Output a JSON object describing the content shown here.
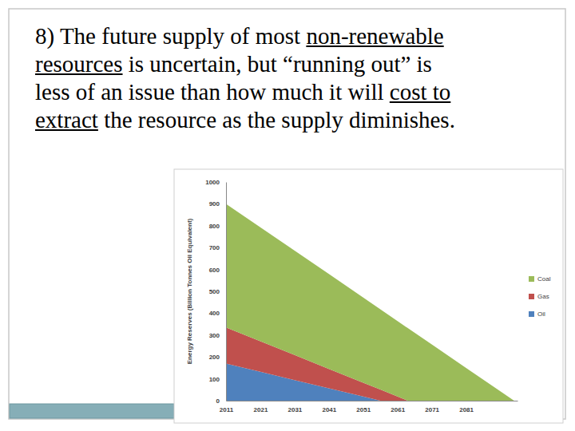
{
  "heading": {
    "lines": [
      [
        {
          "text": "8) The future supply of most ",
          "underline": false
        },
        {
          "text": "non-renewable",
          "underline": true
        }
      ],
      [
        {
          "text": "resources",
          "underline": true
        },
        {
          "text": " is uncertain, but “running out” is",
          "underline": false
        }
      ],
      [
        {
          "text": "less of an issue than how much it will ",
          "underline": false
        },
        {
          "text": "cost to",
          "underline": true
        }
      ],
      [
        {
          "text": "extract",
          "underline": true
        },
        {
          "text": " the resource as the supply diminishes.",
          "underline": false
        }
      ]
    ]
  },
  "chart_data": {
    "type": "area",
    "stacked": true,
    "grid": false,
    "legend": "right",
    "y_label": "Energy Reserves (Billion Tonnes Oil Equivalent)",
    "x": [
      2011,
      2021,
      2031,
      2041,
      2051,
      2056,
      2061,
      2064,
      2071,
      2081,
      2091,
      2095
    ],
    "series": [
      {
        "name": "Oil",
        "color": "#4f81bd",
        "values": [
          170,
          132,
          94,
          57,
          19,
          0,
          0,
          0,
          0,
          0,
          0,
          0
        ]
      },
      {
        "name": "Gas",
        "color": "#c0504d",
        "values": [
          165,
          140,
          115,
          88,
          63,
          51,
          19,
          0,
          0,
          0,
          0,
          0
        ]
      },
      {
        "name": "Coal",
        "color": "#9bbb59",
        "values": [
          565,
          521,
          477,
          434,
          390,
          367,
          345,
          332,
          257,
          150,
          43,
          0
        ]
      }
    ],
    "xlim": [
      2011,
      2096
    ],
    "xticks": [
      2011,
      2021,
      2031,
      2041,
      2051,
      2061,
      2071,
      2081
    ],
    "ylim": [
      0,
      1000
    ],
    "yticks": [
      0,
      100,
      200,
      300,
      400,
      500,
      600,
      700,
      800,
      900,
      1000
    ]
  }
}
